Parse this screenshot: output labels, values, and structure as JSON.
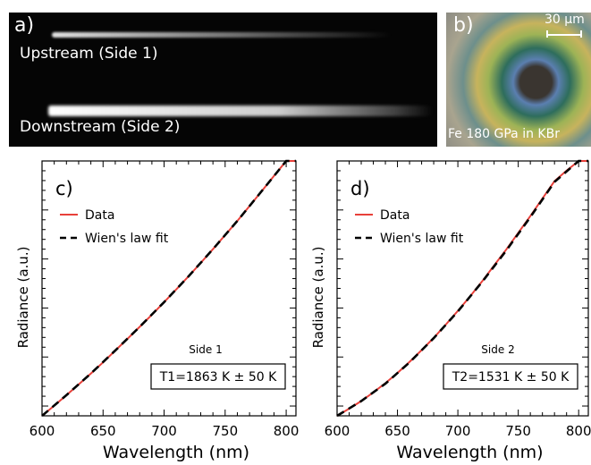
{
  "panel_a": {
    "letter": "a)",
    "upstream_label": "Upstream (Side 1)",
    "downstream_label": "Downstream (Side 2)"
  },
  "panel_b": {
    "letter": "b)",
    "scale_label": "30 µm",
    "caption": "Fe 180 GPa in KBr"
  },
  "colors": {
    "data": "#e8403a",
    "fit": "#000000",
    "axis": "#000000"
  },
  "chart_data": [
    {
      "type": "line",
      "panel_letter": "c)",
      "xlabel": "Wavelength (nm)",
      "ylabel": "Radiance (a.u.)",
      "xlim": [
        600,
        808
      ],
      "ylim": [
        0,
        1
      ],
      "xticks": [
        600,
        650,
        700,
        750,
        800
      ],
      "y_tick_labels": "none",
      "legend": {
        "placement": "top-left",
        "entries": [
          "Data",
          "Wien's law fit"
        ]
      },
      "annotation_title": "Side 1",
      "annotation_box": "T1=1863 K ± 50 K",
      "series": [
        {
          "name": "Data",
          "style": "solid-red",
          "x": [
            600,
            610,
            620,
            630,
            640,
            650,
            660,
            670,
            680,
            690,
            700,
            710,
            720,
            730,
            740,
            750,
            760,
            770,
            780,
            790,
            800,
            808
          ],
          "y": [
            0.0,
            0.04,
            0.081,
            0.123,
            0.166,
            0.21,
            0.256,
            0.302,
            0.349,
            0.397,
            0.446,
            0.496,
            0.547,
            0.6,
            0.654,
            0.709,
            0.765,
            0.823,
            0.882,
            0.941,
            1.0,
            1.0
          ]
        },
        {
          "name": "Wien's law fit",
          "style": "dashed-black",
          "x": [
            600,
            620,
            640,
            660,
            680,
            700,
            720,
            740,
            760,
            780,
            800,
            808
          ],
          "y": [
            0.0,
            0.081,
            0.166,
            0.256,
            0.349,
            0.446,
            0.547,
            0.654,
            0.765,
            0.882,
            1.0,
            1.0
          ]
        }
      ]
    },
    {
      "type": "line",
      "panel_letter": "d)",
      "xlabel": "Wavelength (nm)",
      "ylabel": "Radiance (a.u.)",
      "xlim": [
        600,
        808
      ],
      "ylim": [
        0,
        1
      ],
      "xticks": [
        600,
        650,
        700,
        750,
        800
      ],
      "y_tick_labels": "none",
      "legend": {
        "placement": "top-left",
        "entries": [
          "Data",
          "Wien's law fit"
        ]
      },
      "annotation_title": "Side 2",
      "annotation_box": "T2=1531 K ± 50 K",
      "series": [
        {
          "name": "Data",
          "style": "solid-red",
          "x": [
            600,
            610,
            620,
            630,
            640,
            650,
            660,
            670,
            680,
            690,
            700,
            710,
            720,
            730,
            740,
            750,
            760,
            770,
            780,
            790,
            800,
            808
          ],
          "y": [
            0.0,
            0.028,
            0.058,
            0.092,
            0.128,
            0.168,
            0.212,
            0.258,
            0.306,
            0.358,
            0.412,
            0.468,
            0.527,
            0.59,
            0.652,
            0.718,
            0.784,
            0.853,
            0.921,
            0.962,
            1.0,
            1.0
          ]
        },
        {
          "name": "Wien's law fit",
          "style": "dashed-black",
          "x": [
            600,
            620,
            640,
            660,
            680,
            700,
            720,
            740,
            760,
            780,
            800,
            808
          ],
          "y": [
            0.0,
            0.058,
            0.126,
            0.21,
            0.305,
            0.41,
            0.525,
            0.648,
            0.78,
            0.918,
            1.0,
            1.0
          ]
        }
      ]
    }
  ]
}
